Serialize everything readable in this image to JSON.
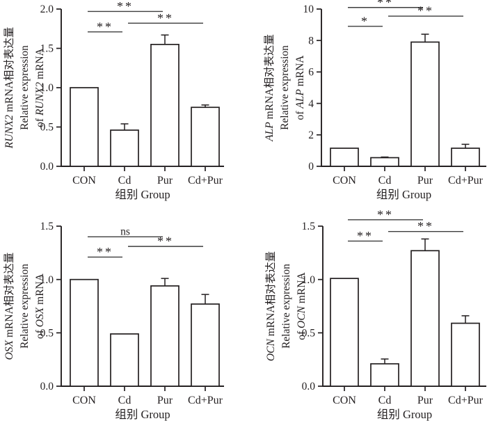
{
  "figure": {
    "background": "#ffffff",
    "ink_color": "#231f20",
    "sig_line_color": "#3d3d3d",
    "bar_fill": "#ffffff"
  },
  "chart_data": [
    {
      "type": "bar",
      "panel": "top-left",
      "gene": "RUNX2",
      "ylabel_cn_suffix": " mRNA相对表达量",
      "ylabel_en_line1": "Relative expression",
      "ylabel_en_line2_prefix": "of ",
      "ylabel_en_line2_suffix": " mRNA",
      "xlabel": "组别  Group",
      "categories": [
        "CON",
        "Cd",
        "Pur",
        "Cd+Pur"
      ],
      "values": [
        1.0,
        0.46,
        1.55,
        0.75
      ],
      "errors": [
        0,
        0.08,
        0.12,
        0.03
      ],
      "ylim": [
        0,
        2.0
      ],
      "ytick_values": [
        0,
        0.5,
        1.0,
        1.5,
        2.0
      ],
      "ytick_labels": [
        "0.0",
        "0.5",
        "1.0",
        "1.5",
        "2.0"
      ],
      "grid": false,
      "comparisons": [
        {
          "from": 0,
          "to": 2,
          "label": "**",
          "y": 1.97
        },
        {
          "from": 1,
          "to": 3,
          "label": "**",
          "y": 1.82
        },
        {
          "from": 0,
          "to": 1,
          "label": "**",
          "y": 1.71
        }
      ]
    },
    {
      "type": "bar",
      "panel": "top-right",
      "gene": "ALP",
      "ylabel_cn_suffix": " mRNA相对表达量",
      "ylabel_en_line1": "Relative expression",
      "ylabel_en_line2_prefix": "of ",
      "ylabel_en_line2_suffix": " mRNA",
      "xlabel": "组别  Group",
      "categories": [
        "CON",
        "Cd",
        "Pur",
        "Cd+Pur"
      ],
      "values": [
        1.15,
        0.55,
        7.9,
        1.15
      ],
      "errors": [
        0,
        0.04,
        0.5,
        0.25
      ],
      "ylim": [
        0,
        10
      ],
      "ytick_values": [
        0,
        2,
        4,
        6,
        8,
        10
      ],
      "ytick_labels": [
        "0",
        "2",
        "4",
        "6",
        "8",
        "10"
      ],
      "grid": false,
      "comparisons": [
        {
          "from": 0,
          "to": 2,
          "label": "**",
          "y": 10.1
        },
        {
          "from": 1,
          "to": 3,
          "label": "**",
          "y": 9.55
        },
        {
          "from": 0,
          "to": 1,
          "label": "*",
          "y": 8.9
        }
      ]
    },
    {
      "type": "bar",
      "panel": "bottom-left",
      "gene": "OSX",
      "ylabel_cn_suffix": " mRNA相对表达量",
      "ylabel_en_line1": "Relative expression",
      "ylabel_en_line2_prefix": "of ",
      "ylabel_en_line2_suffix": " mRNA",
      "xlabel": "组别  Group",
      "categories": [
        "CON",
        "Cd",
        "Pur",
        "Cd+Pur"
      ],
      "values": [
        1.0,
        0.49,
        0.94,
        0.77
      ],
      "errors": [
        0,
        0,
        0.07,
        0.09
      ],
      "ylim": [
        0,
        1.5
      ],
      "ytick_values": [
        0,
        0.5,
        1.0,
        1.5
      ],
      "ytick_labels": [
        "0.0",
        "0.5",
        "1.0",
        "1.5"
      ],
      "grid": false,
      "comparisons": [
        {
          "from": 0,
          "to": 2,
          "label": "ns",
          "y": 1.4
        },
        {
          "from": 1,
          "to": 3,
          "label": "**",
          "y": 1.31
        },
        {
          "from": 0,
          "to": 1,
          "label": "**",
          "y": 1.21
        }
      ]
    },
    {
      "type": "bar",
      "panel": "bottom-right",
      "gene": "OCN",
      "ylabel_cn_suffix": " mRNA相对表达量",
      "ylabel_en_line1": "Relative expression",
      "ylabel_en_line2_prefix": "of ",
      "ylabel_en_line2_suffix": " mRNA",
      "xlabel": "组别  Group",
      "categories": [
        "CON",
        "Cd",
        "Pur",
        "Cd+Pur"
      ],
      "values": [
        1.01,
        0.21,
        1.27,
        0.59
      ],
      "errors": [
        0,
        0.045,
        0.11,
        0.07
      ],
      "ylim": [
        0,
        1.5
      ],
      "ytick_values": [
        0,
        0.5,
        1.0,
        1.5
      ],
      "ytick_labels": [
        "0.0",
        "0.5",
        "1.0",
        "1.5"
      ],
      "grid": false,
      "comparisons": [
        {
          "from": 0,
          "to": 2,
          "label": "**",
          "y": 1.56
        },
        {
          "from": 1,
          "to": 3,
          "label": "**",
          "y": 1.45
        },
        {
          "from": 0,
          "to": 1,
          "label": "**",
          "y": 1.36
        }
      ]
    }
  ]
}
